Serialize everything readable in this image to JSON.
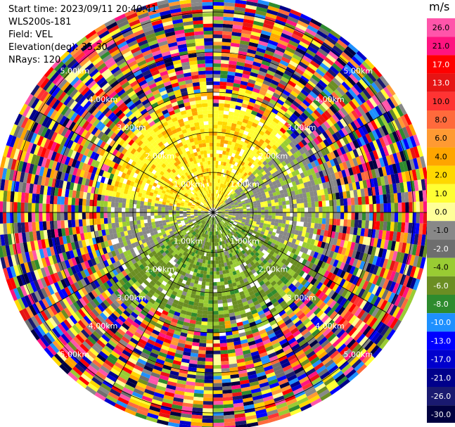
{
  "header": {
    "start_time": "Start time: 2023/09/11 20:40:41",
    "site": "WLS200s-181",
    "field": "Field: VEL",
    "elevation": "Elevation(deg): 35.30",
    "nrays": "NRays: 120"
  },
  "colorbar": {
    "title": "m/s",
    "ticks": [
      "26.0",
      "21.0",
      "17.0",
      "13.0",
      "10.0",
      "8.0",
      "6.0",
      "4.0",
      "2.0",
      "1.0",
      "0.0",
      "-1.0",
      "-2.0",
      "-4.0",
      "-6.0",
      "-8.0",
      "-10.0",
      "-13.0",
      "-17.0",
      "-21.0",
      "-26.0",
      "-30.0"
    ],
    "colors": [
      "#ff55aa",
      "#ff1480",
      "#ff0000",
      "#e61414",
      "#ff3333",
      "#ff6a3c",
      "#ff9a33",
      "#ffa500",
      "#ffd800",
      "#ffff33",
      "#ffff99",
      "#888888",
      "#6e6e6e",
      "#99cc33",
      "#6b8e23",
      "#2e8b2e",
      "#1e90ff",
      "#0000ff",
      "#0000cd",
      "#00008b",
      "#191970",
      "#000040"
    ]
  },
  "chart_data": {
    "type": "heatmap",
    "projection": "PPI (polar)",
    "field": "VEL",
    "units": "m/s",
    "range_rings_km": [
      1.0,
      2.0,
      3.0,
      4.0,
      5.0
    ],
    "range_ring_labels": [
      "1.00km",
      "2.00km",
      "3.00km",
      "4.00km",
      "5.00km"
    ],
    "spokes_deg": [
      0,
      30,
      60,
      90,
      120,
      150,
      180,
      210,
      240,
      270,
      300,
      330
    ],
    "max_range_km": 5.4,
    "velocity_range": [
      -30,
      26
    ],
    "approx_structure": [
      {
        "sector_deg": [
          -80,
          45
        ],
        "range_km": [
          0,
          3.0
        ],
        "velocity_ms": [
          2,
          6
        ],
        "note": "yellow/orange (positive)"
      },
      {
        "sector_deg": [
          45,
          120
        ],
        "range_km": [
          0,
          3.0
        ],
        "velocity_ms": [
          -2,
          0
        ],
        "note": "gray/olive"
      },
      {
        "sector_deg": [
          120,
          240
        ],
        "range_km": [
          0,
          3.2
        ],
        "velocity_ms": [
          -6,
          -2
        ],
        "note": "green (negative)"
      },
      {
        "sector_deg": [
          240,
          280
        ],
        "range_km": [
          0,
          3.0
        ],
        "velocity_ms": [
          -1,
          0
        ],
        "note": "gray"
      },
      {
        "sector_deg": [
          0,
          360
        ],
        "range_km": [
          3.0,
          5.4
        ],
        "velocity_ms": [
          -30,
          26
        ],
        "note": "noise, all colors"
      }
    ]
  }
}
